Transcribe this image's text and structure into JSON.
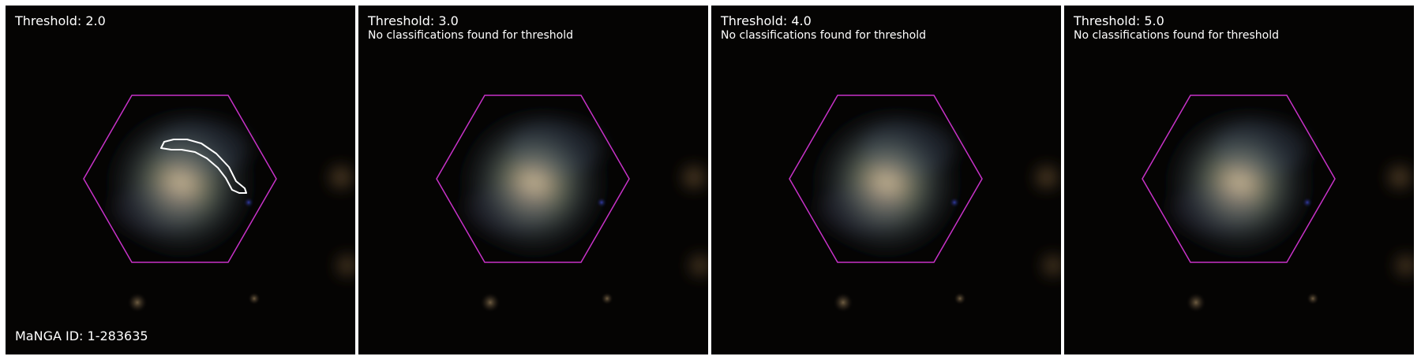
{
  "figure": {
    "galaxy_id_label": "MaNGA ID: 1-283635",
    "colors": {
      "background": "#ffffff",
      "hexagon": "#c832c8",
      "contour": "#ffffff"
    },
    "panels": [
      {
        "threshold_label": "Threshold: 2.0",
        "note": null,
        "has_contour": true
      },
      {
        "threshold_label": "Threshold: 3.0",
        "note": "No classifications found for threshold",
        "has_contour": false
      },
      {
        "threshold_label": "Threshold: 4.0",
        "note": "No classifications found for threshold",
        "has_contour": false
      },
      {
        "threshold_label": "Threshold: 5.0",
        "note": "No classifications found for threshold",
        "has_contour": false
      }
    ]
  }
}
